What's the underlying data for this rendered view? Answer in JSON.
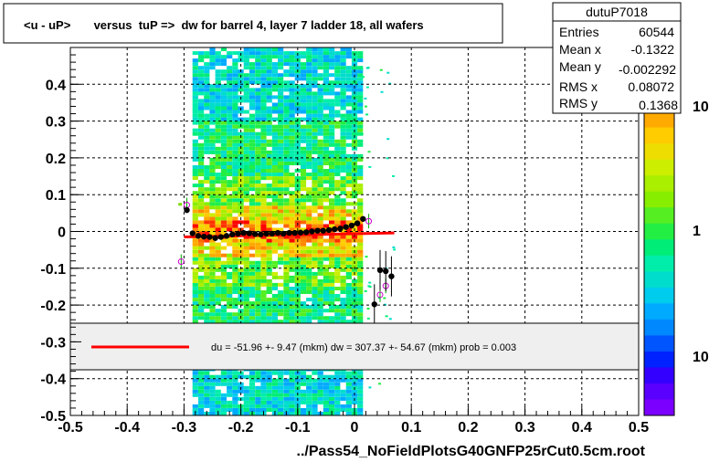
{
  "chart_data": {
    "type": "heatmap",
    "title": "<u - uP>       versus  tuP =>  dw for barrel 4, layer 7 ladder 18, all wafers",
    "xlabel": "../Pass54_NoFieldPlotsG40GNFP25rCut0.5cm.root",
    "ylabel": "",
    "xlim": [
      -0.5,
      0.5
    ],
    "ylim": [
      -0.5,
      0.5
    ],
    "log_z": true,
    "grid": true,
    "x_ticks": [
      "-0.5",
      "-0.4",
      "-0.3",
      "-0.2",
      "-0.1",
      "0",
      "0.1",
      "0.2",
      "0.3",
      "0.4",
      "0.5"
    ],
    "y_ticks": [
      "-0.5",
      "-0.4",
      "-0.3",
      "-0.2",
      "-0.1",
      "0",
      "0.1",
      "0.2",
      "0.3",
      "0.4"
    ],
    "z_ticks": [
      "10",
      "1",
      "10"
    ],
    "stats": {
      "name": "dutuP7018",
      "rows": [
        {
          "label": "Entries",
          "value": "60544"
        },
        {
          "label": "Mean x",
          "value": "-0.1322"
        },
        {
          "label": "Mean y",
          "value": "-0.002292"
        },
        {
          "label": "RMS x",
          "value": "0.08072"
        },
        {
          "label": "RMS y",
          "value": "0.1368"
        }
      ]
    },
    "fit_legend": "du =  -51.96 +-  9.47 (mkm) dw =  307.37 +- 54.67 (mkm) prob = 0.003",
    "fit_line": {
      "x": [
        -0.3,
        0.07
      ],
      "y": [
        -0.015,
        -0.004
      ],
      "color": "#ff0000"
    },
    "profile_points": [
      {
        "x": -0.295,
        "y": 0.058
      },
      {
        "x": -0.285,
        "y": -0.005
      },
      {
        "x": -0.275,
        "y": -0.012
      },
      {
        "x": -0.265,
        "y": -0.014
      },
      {
        "x": -0.255,
        "y": -0.015
      },
      {
        "x": -0.245,
        "y": -0.018
      },
      {
        "x": -0.235,
        "y": -0.015
      },
      {
        "x": -0.225,
        "y": -0.012
      },
      {
        "x": -0.215,
        "y": -0.008
      },
      {
        "x": -0.205,
        "y": -0.006
      },
      {
        "x": -0.195,
        "y": -0.004
      },
      {
        "x": -0.185,
        "y": -0.005
      },
      {
        "x": -0.175,
        "y": -0.007
      },
      {
        "x": -0.165,
        "y": -0.008
      },
      {
        "x": -0.155,
        "y": -0.006
      },
      {
        "x": -0.145,
        "y": -0.006
      },
      {
        "x": -0.135,
        "y": -0.004
      },
      {
        "x": -0.125,
        "y": -0.006
      },
      {
        "x": -0.115,
        "y": -0.004
      },
      {
        "x": -0.105,
        "y": -0.004
      },
      {
        "x": -0.095,
        "y": -0.003
      },
      {
        "x": -0.085,
        "y": -0.002
      },
      {
        "x": -0.075,
        "y": 0.0
      },
      {
        "x": -0.065,
        "y": 0.002
      },
      {
        "x": -0.055,
        "y": 0.002
      },
      {
        "x": -0.045,
        "y": 0.004
      },
      {
        "x": -0.035,
        "y": 0.006
      },
      {
        "x": -0.025,
        "y": 0.008
      },
      {
        "x": -0.015,
        "y": 0.012
      },
      {
        "x": -0.005,
        "y": 0.016
      },
      {
        "x": 0.005,
        "y": 0.022
      },
      {
        "x": 0.015,
        "y": 0.034
      },
      {
        "x": 0.035,
        "y": -0.198
      },
      {
        "x": 0.045,
        "y": -0.105
      },
      {
        "x": 0.055,
        "y": -0.108
      },
      {
        "x": 0.065,
        "y": -0.122
      }
    ],
    "open_points": [
      {
        "x": -0.295,
        "y": 0.072
      },
      {
        "x": -0.305,
        "y": -0.082
      },
      {
        "x": 0.045,
        "y": -0.172
      },
      {
        "x": 0.055,
        "y": -0.148
      },
      {
        "x": 0.025,
        "y": 0.028
      }
    ]
  }
}
